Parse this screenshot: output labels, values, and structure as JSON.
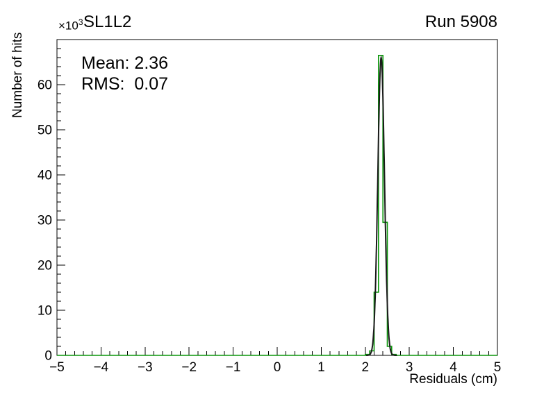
{
  "header": {
    "title": "SL1L2",
    "corner_label": "Run 5908"
  },
  "stats": {
    "mean_label": "Mean: 2.36",
    "rms_label": "RMS:  0.07"
  },
  "axes": {
    "xlabel": "Residuals (cm)",
    "ylabel": "Number of hits",
    "y_mult_base": "×10",
    "y_mult_exp": "3"
  },
  "chart_data": {
    "type": "line",
    "title": "SL1L2",
    "corner_label": "Run 5908",
    "xlabel": "Residuals (cm)",
    "ylabel": "Number of hits",
    "y_scale_label": "×10³",
    "units": "y values in thousands of hits",
    "xlim": [
      -5,
      5
    ],
    "ylim": [
      0,
      70
    ],
    "x_major_ticks": [
      -5,
      -4,
      -3,
      -2,
      -1,
      0,
      1,
      2,
      3,
      4,
      5
    ],
    "x_minor_step": 0.2,
    "y_major_ticks": [
      0,
      10,
      20,
      30,
      40,
      50,
      60
    ],
    "y_minor_step": 2,
    "grid": false,
    "legend": "none",
    "stats": {
      "mean": 2.36,
      "rms": 0.07
    },
    "annotations": [
      "Mean: 2.36",
      "RMS:  0.07"
    ],
    "series": [
      {
        "name": "residual-histogram",
        "type": "step",
        "color": "#0a960a",
        "line_width": 1.6,
        "bin_width": 0.1,
        "bins": [
          {
            "x0": 2.0,
            "y": 0.2
          },
          {
            "x0": 2.1,
            "y": 1.0
          },
          {
            "x0": 2.2,
            "y": 14.0
          },
          {
            "x0": 2.3,
            "y": 66.5
          },
          {
            "x0": 2.4,
            "y": 29.5
          },
          {
            "x0": 2.5,
            "y": 2.0
          },
          {
            "x0": 2.6,
            "y": 0.2
          }
        ]
      },
      {
        "name": "fit-curve",
        "type": "gaussian",
        "color": "#1a1a1a",
        "line_width": 2,
        "mean": 2.36,
        "sigma": 0.075,
        "amplitude": 66.0,
        "range": [
          2.02,
          2.72
        ]
      }
    ]
  }
}
